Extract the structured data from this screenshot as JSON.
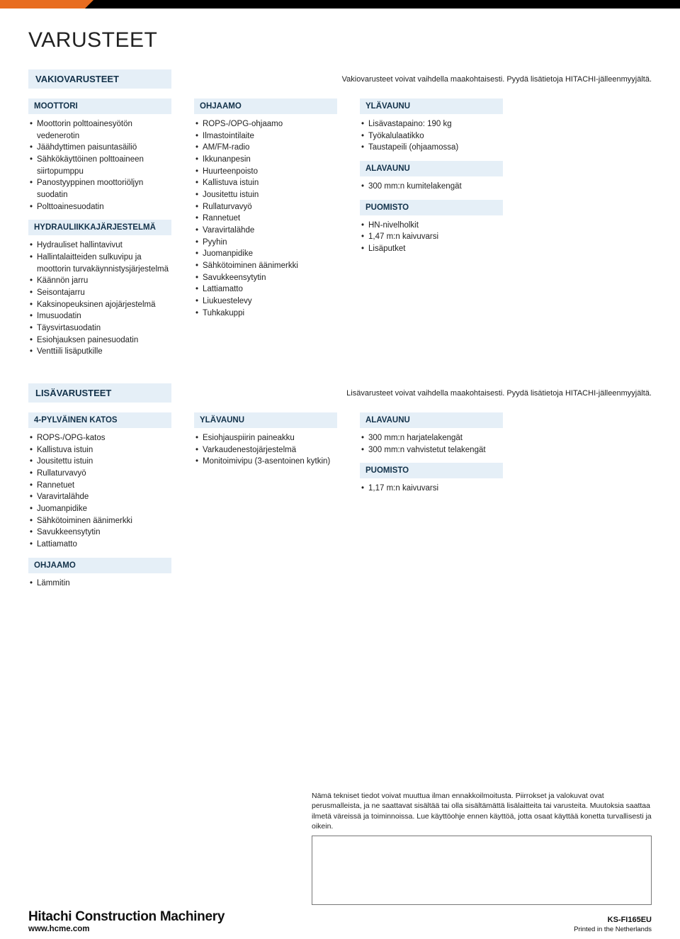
{
  "page_title": "VARUSTEET",
  "colors": {
    "header_bg": "#e5eff7",
    "header_text": "#13324a",
    "accent_orange": "#e86c1f",
    "topbar_black": "#000000",
    "body_text": "#222222",
    "page_bg": "#ffffff"
  },
  "typography": {
    "title_fontsize": 30,
    "section_header_fontsize": 13,
    "group_header_fontsize": 11.5,
    "list_fontsize": 11.5,
    "note_fontsize": 11,
    "disclaimer_fontsize": 10.5
  },
  "standard": {
    "section_title": "VAKIOVARUSTEET",
    "section_note": "Vakiovarusteet voivat vaihdella maakohtaisesti. Pyydä lisätietoja HITACHI-jälleenmyyjältä.",
    "col1": {
      "g1": {
        "title": "MOOTTORI",
        "items": [
          "Moottorin polttoainesyötön vedenerotin",
          "Jäähdyttimen paisuntasäiliö",
          "Sähkökäyttöinen polttoaineen siirtopumppu",
          "Panostyyppinen moottoriöljyn suodatin",
          "Polttoainesuodatin"
        ]
      },
      "g2": {
        "title": "HYDRAULIIKKAJÄRJESTELMÄ",
        "items": [
          "Hydrauliset hallintavivut",
          "Hallintalaitteiden sulkuvipu ja moottorin turvakäynnistysjärjestelmä",
          "Käännön jarru",
          "Seisontajarru",
          "Kaksinopeuksinen ajojärjestelmä",
          "Imusuodatin",
          "Täysvirtasuodatin",
          "Esiohjauksen painesuodatin",
          "Venttiili lisäputkille"
        ]
      }
    },
    "col2": {
      "g1": {
        "title": "OHJAAMO",
        "items": [
          "ROPS-/OPG-ohjaamo",
          "Ilmastointilaite",
          "AM/FM-radio",
          "Ikkunanpesin",
          "Huurteenpoisto",
          "Kallistuva istuin",
          "Jousitettu istuin",
          "Rullaturvavyö",
          "Rannetuet",
          "Varavirtalähde",
          "Pyyhin",
          "Juomanpidike",
          "Sähkötoiminen äänimerkki",
          "Savukkeensytytin",
          "Lattiamatto",
          "Liukuestelevy",
          "Tuhkakuppi"
        ]
      }
    },
    "col3": {
      "g1": {
        "title": "YLÄVAUNU",
        "items": [
          "Lisävastapaino: 190 kg",
          "Työkalulaatikko",
          "Taustapeili (ohjaamossa)"
        ]
      },
      "g2": {
        "title": "ALAVAUNU",
        "items": [
          "300 mm:n kumitelakengät"
        ]
      },
      "g3": {
        "title": "PUOMISTO",
        "items": [
          "HN-nivelholkit",
          "1,47 m:n kaivuvarsi",
          "Lisäputket"
        ]
      }
    }
  },
  "optional": {
    "section_title": "LISÄVARUSTEET",
    "section_note": "Lisävarusteet voivat vaihdella maakohtaisesti. Pyydä lisätietoja HITACHI-jälleenmyyjältä.",
    "col1": {
      "g1": {
        "title": "4-PYLVÄINEN KATOS",
        "items": [
          "ROPS-/OPG-katos",
          "Kallistuva istuin",
          "Jousitettu istuin",
          "Rullaturvavyö",
          "Rannetuet",
          "Varavirtalähde",
          "Juomanpidike",
          "Sähkötoiminen äänimerkki",
          "Savukkeensytytin",
          "Lattiamatto"
        ]
      },
      "g2": {
        "title": "OHJAAMO",
        "items": [
          "Lämmitin"
        ]
      }
    },
    "col2": {
      "g1": {
        "title": "YLÄVAUNU",
        "items": [
          "Esiohjauspiirin paineakku",
          "Varkaudenestojärjestelmä",
          "Monitoimivipu (3-asentoinen kytkin)"
        ]
      }
    },
    "col3": {
      "g1": {
        "title": "ALAVAUNU",
        "items": [
          "300 mm:n harjatelakengät",
          "300 mm:n vahvistetut telakengät"
        ]
      },
      "g2": {
        "title": "PUOMISTO",
        "items": [
          "1,17 m:n kaivuvarsi"
        ]
      }
    }
  },
  "footer": {
    "disclaimer": "Nämä tekniset tiedot voivat muuttua ilman ennakkoilmoitusta. Piirrokset ja valokuvat ovat perusmalleista, ja ne saattavat sisältää tai olla sisältämättä lisälaitteita tai varusteita. Muutoksia saattaa ilmetä väreissä ja toiminnoissa. Lue käyttöohje ennen käyttöä, jotta osaat käyttää konetta turvallisesti ja oikein.",
    "brand": "Hitachi Construction Machinery",
    "url": "www.hcme.com",
    "doc_id": "KS-FI165EU",
    "printed": "Printed in the Netherlands"
  }
}
